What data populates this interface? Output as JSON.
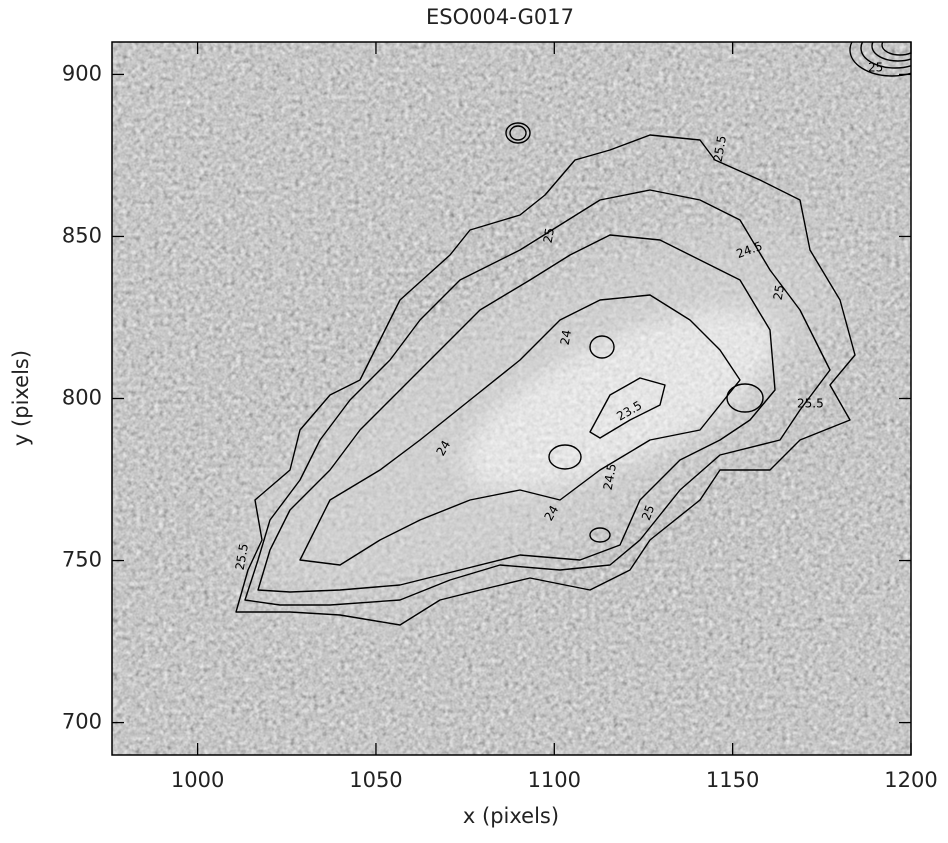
{
  "chart_data": {
    "type": "contour-image",
    "title": "ESO004-G017",
    "xlabel": "x (pixels)",
    "ylabel": "y (pixels)",
    "xlim": [
      976,
      1200
    ],
    "ylim": [
      690,
      910
    ],
    "xticks": [
      1000,
      1050,
      1100,
      1150,
      1200
    ],
    "yticks": [
      700,
      750,
      800,
      850,
      900
    ],
    "contour_levels": [
      23.5,
      24,
      24.5,
      25,
      25.5
    ],
    "color": "#000000"
  }
}
